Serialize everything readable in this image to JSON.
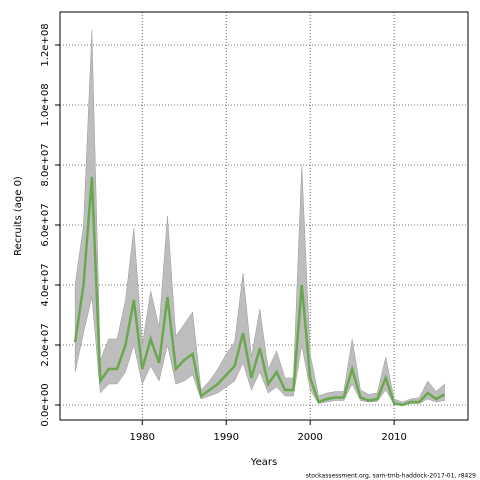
{
  "chart_data": {
    "type": "line",
    "xlabel": "Years",
    "ylabel": "Recruits (age 0)",
    "footnote": "stockassessment.org, sam-tmb-haddock-2017-01, r8429",
    "x": [
      1972,
      1973,
      1974,
      1975,
      1976,
      1977,
      1978,
      1979,
      1980,
      1981,
      1982,
      1983,
      1984,
      1985,
      1986,
      1987,
      1988,
      1989,
      1990,
      1991,
      1992,
      1993,
      1994,
      1995,
      1996,
      1997,
      1998,
      1999,
      2000,
      2001,
      2002,
      2003,
      2004,
      2005,
      2006,
      2007,
      2008,
      2009,
      2010,
      2011,
      2012,
      2013,
      2014,
      2015,
      2016
    ],
    "values": [
      21000000.0,
      40000000.0,
      76000000.0,
      8000000.0,
      12000000.0,
      12000000.0,
      20000000.0,
      35000000.0,
      12000000.0,
      22000000.0,
      14000000.0,
      36000000.0,
      12000000.0,
      15000000.0,
      17000000.0,
      3000000.0,
      5000000.0,
      7000000.0,
      10000000.0,
      13000000.0,
      24000000.0,
      9000000.0,
      19000000.0,
      7000000.0,
      11000000.0,
      5000000.0,
      5000000.0,
      40000000.0,
      9000000.0,
      1000000.0,
      2000000.0,
      2500000.0,
      2500000.0,
      12000000.0,
      2500000.0,
      1500000.0,
      2000000.0,
      9000000.0,
      500000.0,
      0.0,
      1000000.0,
      1000000.0,
      4000000.0,
      2000000.0,
      3500000.0
    ],
    "lower": [
      11000000.0,
      24000000.0,
      36000000.0,
      4000000.0,
      7000000.0,
      7000000.0,
      11000000.0,
      20000000.0,
      7000000.0,
      13000000.0,
      8000000.0,
      20000000.0,
      7000000.0,
      8000000.0,
      10000000.0,
      2000000.0,
      3000000.0,
      4000000.0,
      6000000.0,
      8000000.0,
      14000000.0,
      5000000.0,
      11000000.0,
      4000000.0,
      6000000.0,
      3000000.0,
      3000000.0,
      20000000.0,
      5000000.0,
      500000.0,
      1000000.0,
      1500000.0,
      1500000.0,
      7000000.0,
      1500000.0,
      1000000.0,
      1200000.0,
      5000000.0,
      200000.0,
      0.0,
      500000.0,
      500000.0,
      2000000.0,
      1000000.0,
      1500000.0
    ],
    "upper": [
      40000000.0,
      60000000.0,
      125000000.0,
      15000000.0,
      22000000.0,
      22000000.0,
      35000000.0,
      59000000.0,
      20000000.0,
      38000000.0,
      26000000.0,
      63000000.0,
      23000000.0,
      27000000.0,
      31000000.0,
      5000000.0,
      8000000.0,
      12000000.0,
      17000000.0,
      21000000.0,
      44000000.0,
      16000000.0,
      32000000.0,
      12000000.0,
      18000000.0,
      9000000.0,
      9000000.0,
      80000000.0,
      17000000.0,
      3000000.0,
      4000000.0,
      4500000.0,
      4500000.0,
      22000000.0,
      5000000.0,
      3500000.0,
      4000000.0,
      16000000.0,
      2000000.0,
      1000000.0,
      2000000.0,
      2500000.0,
      8000000.0,
      4500000.0,
      7000000.0
    ],
    "color": "#6aa84f",
    "band_color": "#bdbdbd",
    "xlim": [
      1970.2,
      2018.8
    ],
    "ylim": [
      -5000000.0,
      131000000.0
    ],
    "xticks": [
      1980,
      1990,
      2000,
      2010
    ],
    "yticks": [
      {
        "value": 0,
        "label": "0.0e+00"
      },
      {
        "value": 20000000.0,
        "label": "2.0e+07"
      },
      {
        "value": 40000000.0,
        "label": "4.0e+07"
      },
      {
        "value": 60000000.0,
        "label": "6.0e+07"
      },
      {
        "value": 80000000.0,
        "label": "8.0e+07"
      },
      {
        "value": 100000000.0,
        "label": "1.0e+08"
      },
      {
        "value": 120000000.0,
        "label": "1.2e+08"
      }
    ],
    "grid": true
  }
}
